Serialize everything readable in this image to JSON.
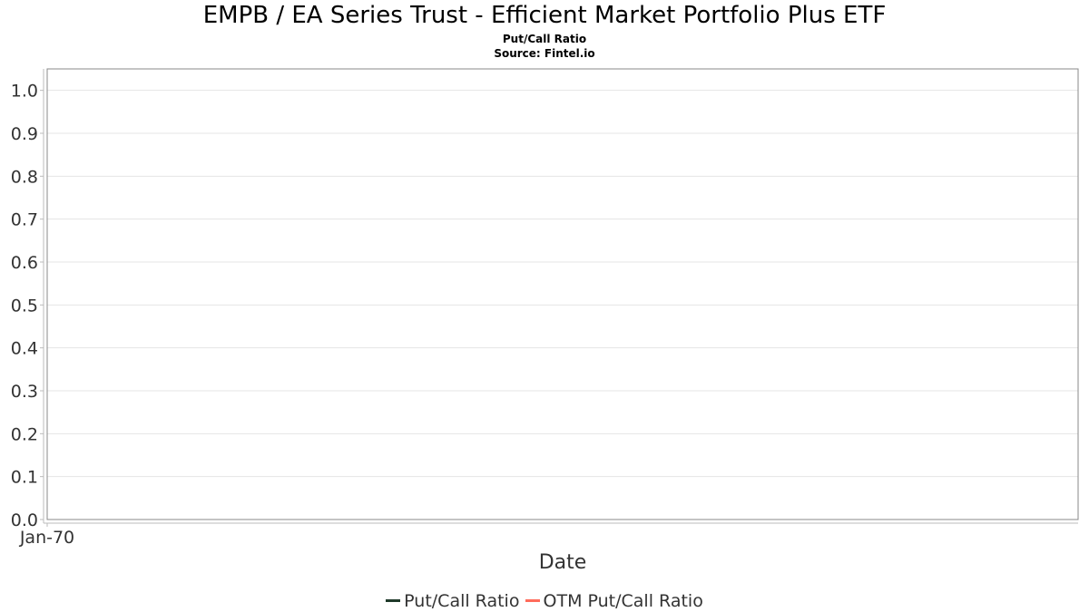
{
  "chart_data": {
    "type": "line",
    "title": "EMPB / EA Series Trust - Efficient Market Portfolio Plus ETF",
    "subtitle": "Put/Call Ratio",
    "source": "Source: Fintel.io",
    "xlabel": "Date",
    "ylabel": "",
    "ylim": [
      0,
      1.05
    ],
    "yticks": [
      0.0,
      0.1,
      0.2,
      0.3,
      0.4,
      0.5,
      0.6,
      0.7,
      0.8,
      0.9,
      1.0
    ],
    "xticks": [
      "Jan-70"
    ],
    "grid": true,
    "legend_position": "bottom",
    "series": [
      {
        "name": "Put/Call Ratio",
        "color": "#1f3a2a",
        "x": [],
        "y": []
      },
      {
        "name": "OTM Put/Call Ratio",
        "color": "#ff6b5b",
        "x": [],
        "y": []
      }
    ]
  }
}
